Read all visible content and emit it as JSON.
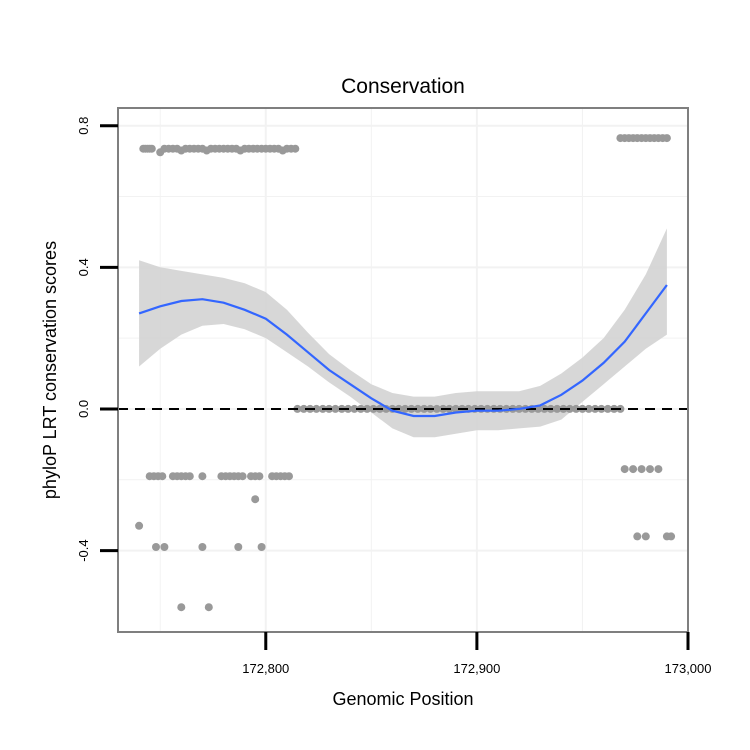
{
  "chart_data": {
    "type": "scatter",
    "title": "Conservation",
    "xlabel": "Genomic Position",
    "ylabel": "phyloP LRT conservation scores",
    "xlim": [
      172730,
      173000
    ],
    "ylim": [
      -0.63,
      0.85
    ],
    "x_ticks": [
      172800,
      172900,
      173000
    ],
    "x_tick_labels": [
      "172,800",
      "172,900",
      "173,000"
    ],
    "y_ticks": [
      -0.4,
      0.0,
      0.4,
      0.8
    ],
    "y_tick_labels": [
      "-0.4",
      "0.0",
      "0.4",
      "0.8"
    ],
    "grid": true,
    "reference_line": {
      "y": 0.0,
      "style": "dashed"
    },
    "colors": {
      "points": "#999999",
      "smooth": "#3366FF",
      "ribbon": "#D3D3D3",
      "panel_border": "#7F7F7F",
      "grid": "#F2F2F2"
    },
    "points": [
      [
        172742,
        0.735
      ],
      [
        172743,
        0.735
      ],
      [
        172744,
        0.735
      ],
      [
        172745,
        0.735
      ],
      [
        172746,
        0.735
      ],
      [
        172750,
        0.725
      ],
      [
        172752,
        0.735
      ],
      [
        172754,
        0.735
      ],
      [
        172756,
        0.735
      ],
      [
        172758,
        0.735
      ],
      [
        172760,
        0.73
      ],
      [
        172762,
        0.735
      ],
      [
        172764,
        0.735
      ],
      [
        172766,
        0.735
      ],
      [
        172768,
        0.735
      ],
      [
        172770,
        0.735
      ],
      [
        172772,
        0.73
      ],
      [
        172774,
        0.735
      ],
      [
        172776,
        0.735
      ],
      [
        172778,
        0.735
      ],
      [
        172780,
        0.735
      ],
      [
        172782,
        0.735
      ],
      [
        172784,
        0.735
      ],
      [
        172786,
        0.735
      ],
      [
        172788,
        0.73
      ],
      [
        172790,
        0.735
      ],
      [
        172792,
        0.735
      ],
      [
        172794,
        0.735
      ],
      [
        172796,
        0.735
      ],
      [
        172798,
        0.735
      ],
      [
        172800,
        0.735
      ],
      [
        172802,
        0.735
      ],
      [
        172804,
        0.735
      ],
      [
        172806,
        0.735
      ],
      [
        172808,
        0.73
      ],
      [
        172810,
        0.735
      ],
      [
        172812,
        0.735
      ],
      [
        172814,
        0.735
      ],
      [
        172968,
        0.765
      ],
      [
        172970,
        0.765
      ],
      [
        172972,
        0.765
      ],
      [
        172974,
        0.765
      ],
      [
        172976,
        0.765
      ],
      [
        172978,
        0.765
      ],
      [
        172980,
        0.765
      ],
      [
        172982,
        0.765
      ],
      [
        172984,
        0.765
      ],
      [
        172986,
        0.765
      ],
      [
        172988,
        0.765
      ],
      [
        172990,
        0.765
      ],
      [
        172745,
        -0.19
      ],
      [
        172747,
        -0.19
      ],
      [
        172749,
        -0.19
      ],
      [
        172751,
        -0.19
      ],
      [
        172756,
        -0.19
      ],
      [
        172758,
        -0.19
      ],
      [
        172760,
        -0.19
      ],
      [
        172762,
        -0.19
      ],
      [
        172764,
        -0.19
      ],
      [
        172770,
        -0.19
      ],
      [
        172779,
        -0.19
      ],
      [
        172781,
        -0.19
      ],
      [
        172783,
        -0.19
      ],
      [
        172785,
        -0.19
      ],
      [
        172787,
        -0.19
      ],
      [
        172789,
        -0.19
      ],
      [
        172793,
        -0.19
      ],
      [
        172795,
        -0.19
      ],
      [
        172797,
        -0.19
      ],
      [
        172803,
        -0.19
      ],
      [
        172805,
        -0.19
      ],
      [
        172807,
        -0.19
      ],
      [
        172809,
        -0.19
      ],
      [
        172811,
        -0.19
      ],
      [
        172795,
        -0.255
      ],
      [
        172740,
        -0.33
      ],
      [
        172748,
        -0.39
      ],
      [
        172752,
        -0.39
      ],
      [
        172770,
        -0.39
      ],
      [
        172787,
        -0.39
      ],
      [
        172798,
        -0.39
      ],
      [
        172760,
        -0.56
      ],
      [
        172773,
        -0.56
      ],
      [
        172970,
        -0.17
      ],
      [
        172974,
        -0.17
      ],
      [
        172978,
        -0.17
      ],
      [
        172982,
        -0.17
      ],
      [
        172986,
        -0.17
      ],
      [
        172976,
        -0.36
      ],
      [
        172980,
        -0.36
      ],
      [
        172990,
        -0.36
      ],
      [
        172992,
        -0.36
      ],
      [
        172815,
        0.0
      ],
      [
        172818,
        0.0
      ],
      [
        172821,
        0.0
      ],
      [
        172824,
        0.0
      ],
      [
        172827,
        0.0
      ],
      [
        172830,
        0.0
      ],
      [
        172833,
        0.0
      ],
      [
        172836,
        0.0
      ],
      [
        172839,
        0.0
      ],
      [
        172842,
        0.0
      ],
      [
        172845,
        0.0
      ],
      [
        172848,
        0.0
      ],
      [
        172851,
        0.0
      ],
      [
        172854,
        0.0
      ],
      [
        172857,
        0.0
      ],
      [
        172860,
        0.0
      ],
      [
        172863,
        0.0
      ],
      [
        172866,
        0.0
      ],
      [
        172869,
        0.0
      ],
      [
        172872,
        0.0
      ],
      [
        172875,
        0.0
      ],
      [
        172878,
        0.0
      ],
      [
        172881,
        0.0
      ],
      [
        172884,
        0.0
      ],
      [
        172887,
        0.0
      ],
      [
        172890,
        0.0
      ],
      [
        172893,
        0.0
      ],
      [
        172896,
        0.0
      ],
      [
        172899,
        0.0
      ],
      [
        172902,
        0.0
      ],
      [
        172905,
        0.0
      ],
      [
        172908,
        0.0
      ],
      [
        172911,
        0.0
      ],
      [
        172914,
        0.0
      ],
      [
        172917,
        0.0
      ],
      [
        172920,
        0.0
      ],
      [
        172923,
        0.0
      ],
      [
        172926,
        0.0
      ],
      [
        172929,
        0.0
      ],
      [
        172932,
        0.0
      ],
      [
        172935,
        0.0
      ],
      [
        172938,
        0.0
      ],
      [
        172941,
        0.0
      ],
      [
        172944,
        0.0
      ],
      [
        172947,
        0.0
      ],
      [
        172950,
        0.0
      ],
      [
        172953,
        0.0
      ],
      [
        172956,
        0.0
      ],
      [
        172959,
        0.0
      ],
      [
        172962,
        0.0
      ],
      [
        172965,
        0.0
      ],
      [
        172968,
        0.0
      ]
    ],
    "smooth": {
      "x": [
        172740,
        172750,
        172760,
        172770,
        172780,
        172790,
        172800,
        172810,
        172820,
        172830,
        172840,
        172850,
        172860,
        172870,
        172880,
        172890,
        172900,
        172910,
        172920,
        172930,
        172940,
        172950,
        172960,
        172970,
        172980,
        172990
      ],
      "y": [
        0.27,
        0.29,
        0.305,
        0.31,
        0.3,
        0.28,
        0.255,
        0.21,
        0.16,
        0.11,
        0.07,
        0.03,
        -0.005,
        -0.02,
        -0.02,
        -0.01,
        -0.005,
        -0.005,
        0.0,
        0.01,
        0.04,
        0.08,
        0.13,
        0.19,
        0.27,
        0.35
      ],
      "lower": [
        0.12,
        0.17,
        0.21,
        0.235,
        0.24,
        0.225,
        0.2,
        0.16,
        0.12,
        0.075,
        0.035,
        -0.01,
        -0.055,
        -0.08,
        -0.08,
        -0.07,
        -0.06,
        -0.06,
        -0.055,
        -0.05,
        -0.03,
        0.02,
        0.07,
        0.12,
        0.17,
        0.21
      ],
      "upper": [
        0.42,
        0.4,
        0.39,
        0.38,
        0.37,
        0.355,
        0.33,
        0.28,
        0.215,
        0.155,
        0.11,
        0.07,
        0.045,
        0.035,
        0.035,
        0.045,
        0.05,
        0.05,
        0.05,
        0.065,
        0.1,
        0.145,
        0.2,
        0.28,
        0.38,
        0.51
      ]
    }
  }
}
